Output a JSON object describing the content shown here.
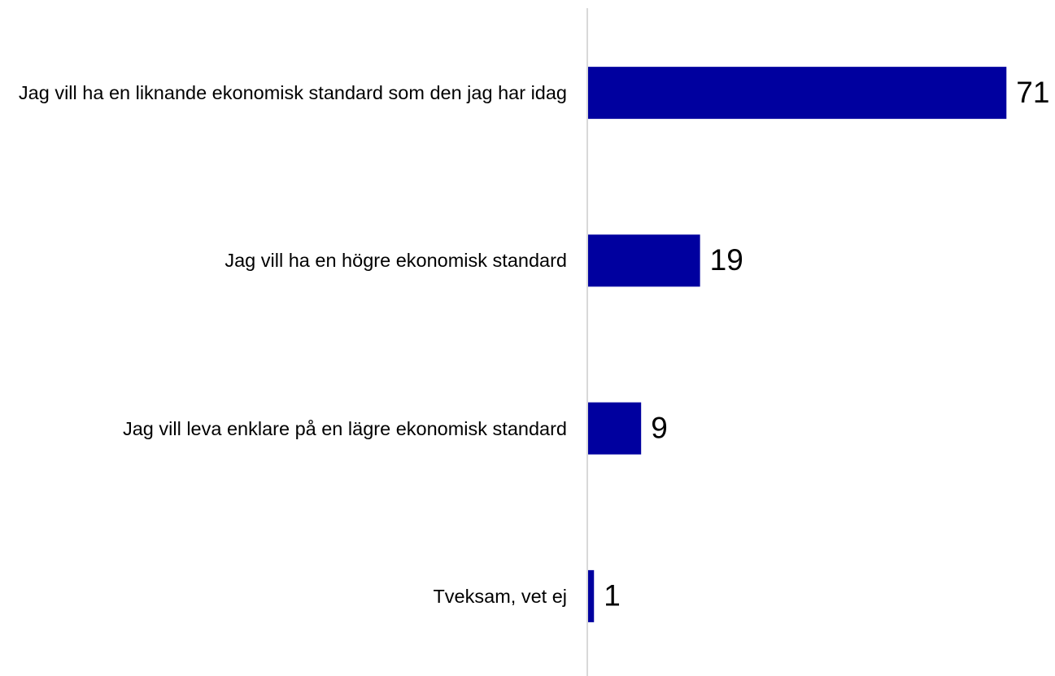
{
  "chart_data": {
    "type": "bar",
    "orientation": "horizontal",
    "categories": [
      "Jag vill ha en liknande ekonomisk standard som den jag har idag",
      "Jag vill ha en högre ekonomisk standard",
      "Jag vill leva enklare på en lägre ekonomisk standard",
      "Tveksam, vet ej"
    ],
    "values": [
      71,
      19,
      9,
      1
    ],
    "color": "#00009f",
    "xlim": [
      0,
      78
    ],
    "grid": false
  }
}
